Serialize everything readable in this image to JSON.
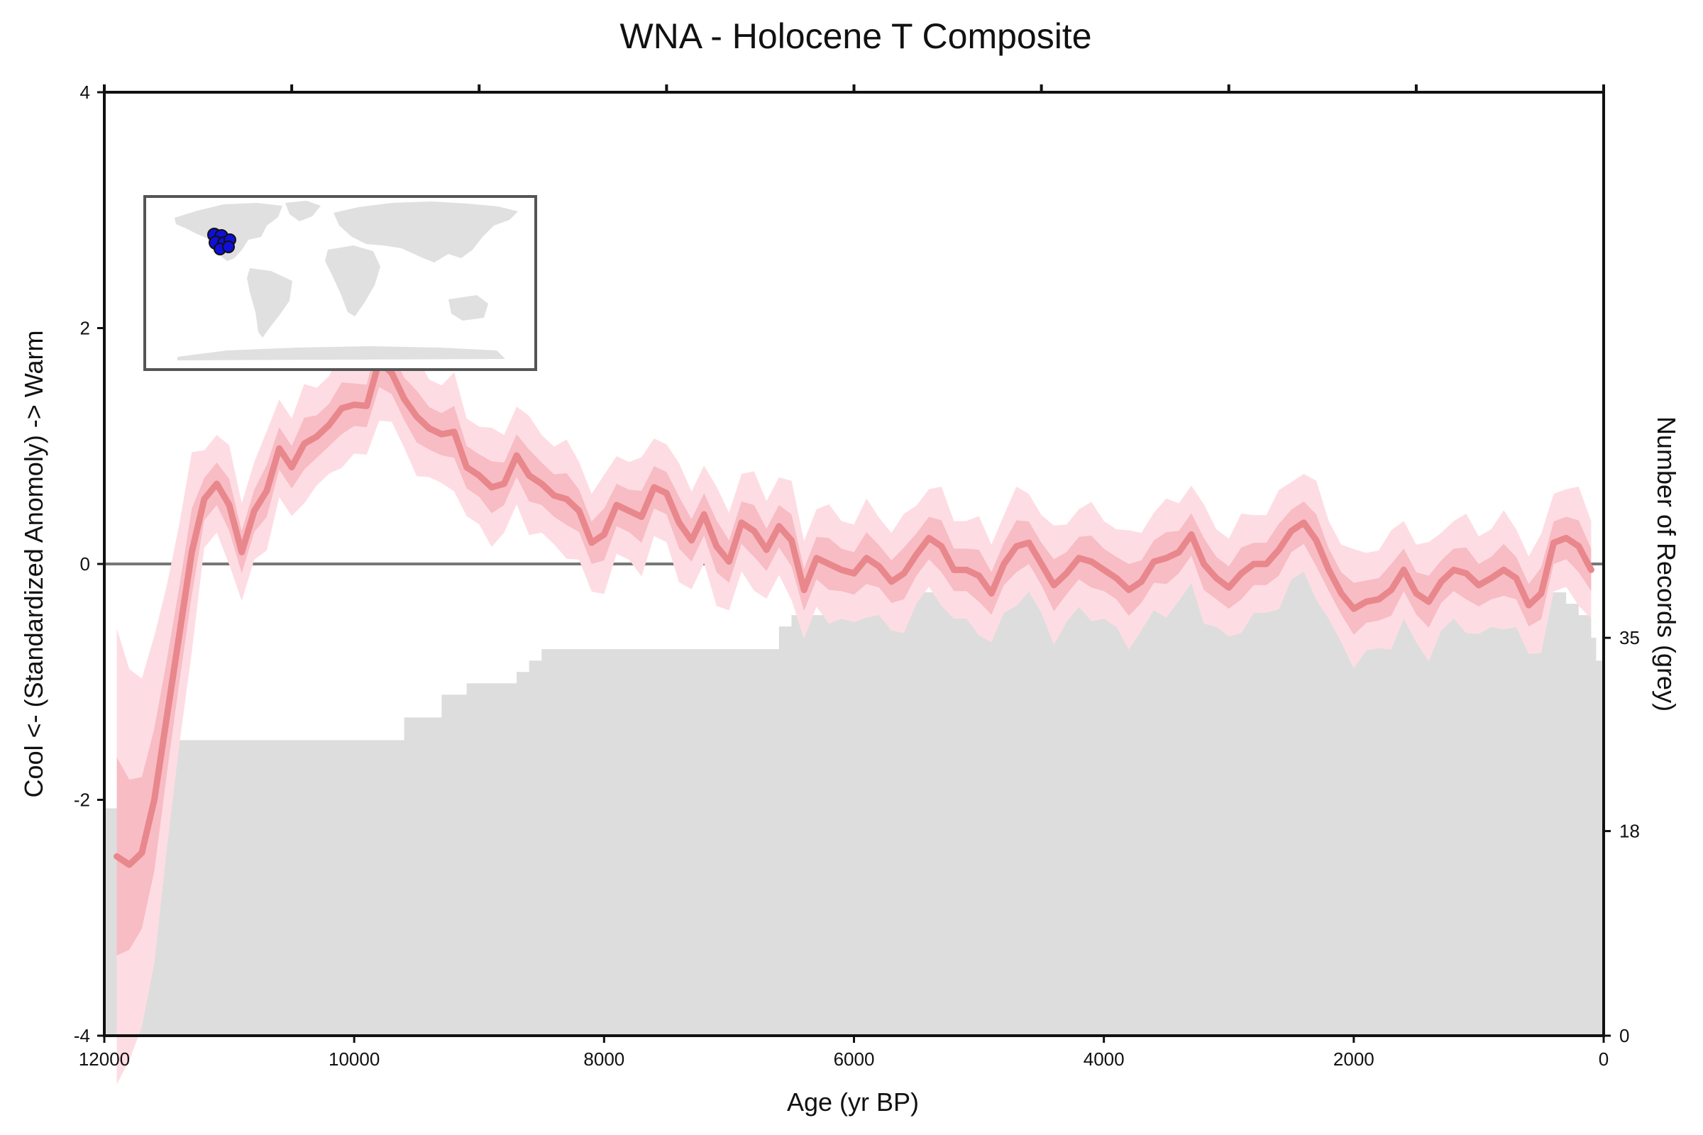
{
  "chart_data": {
    "type": "line",
    "title": "WNA - Holocene T Composite",
    "xlabel": "Age (yr BP)",
    "ylabel": "Cool <- (Standardized Anomoly) -> Warm",
    "y2label": "Number of Records (grey)",
    "x_reversed": true,
    "xlim": [
      12000,
      0
    ],
    "ylim": [
      -4,
      4
    ],
    "y2lim": [
      0,
      83
    ],
    "x_ticks": [
      "12000",
      "10000",
      "8000",
      "6000",
      "4000",
      "2000",
      "0"
    ],
    "y_ticks": [
      "4",
      "2",
      "0",
      "-2",
      "-4"
    ],
    "y2_ticks": [
      "35",
      "18",
      "0"
    ],
    "grid": false,
    "zero_line": true,
    "colors": {
      "composite": "#e8878c",
      "inner_band": "#f8bcc4",
      "outer_band": "#fddde3",
      "records": "#dddddd",
      "zero_line": "#777777",
      "site_marker": "#1010d8"
    },
    "series": [
      {
        "name": "Composite",
        "x": [
          11900,
          11800,
          11700,
          11600,
          11500,
          11400,
          11300,
          11200,
          11100,
          11000,
          10900,
          10800,
          10700,
          10600,
          10500,
          10400,
          10300,
          10200,
          10100,
          10000,
          9900,
          9800,
          9700,
          9600,
          9500,
          9400,
          9300,
          9200,
          9100,
          9000,
          8900,
          8800,
          8700,
          8600,
          8500,
          8400,
          8300,
          8200,
          8100,
          8000,
          7900,
          7800,
          7700,
          7600,
          7500,
          7400,
          7300,
          7200,
          7100,
          7000,
          6900,
          6800,
          6700,
          6600,
          6500,
          6400,
          6300,
          6200,
          6100,
          6000,
          5900,
          5800,
          5700,
          5600,
          5500,
          5400,
          5300,
          5200,
          5100,
          5000,
          4900,
          4800,
          4700,
          4600,
          4500,
          4400,
          4300,
          4200,
          4100,
          4000,
          3900,
          3800,
          3700,
          3600,
          3500,
          3400,
          3300,
          3200,
          3100,
          3000,
          2900,
          2800,
          2700,
          2600,
          2500,
          2400,
          2300,
          2200,
          2100,
          2000,
          1900,
          1800,
          1700,
          1600,
          1500,
          1400,
          1300,
          1200,
          1100,
          1000,
          900,
          800,
          700,
          600,
          500,
          400,
          300,
          200,
          100
        ],
        "values": [
          -2.48,
          -2.55,
          -2.45,
          -2.0,
          -1.3,
          -0.6,
          0.1,
          0.55,
          0.68,
          0.5,
          0.1,
          0.45,
          0.62,
          0.98,
          0.82,
          1.02,
          1.08,
          1.18,
          1.32,
          1.35,
          1.34,
          1.72,
          1.62,
          1.4,
          1.25,
          1.15,
          1.1,
          1.12,
          0.82,
          0.75,
          0.65,
          0.68,
          0.92,
          0.75,
          0.68,
          0.58,
          0.55,
          0.45,
          0.18,
          0.25,
          0.5,
          0.45,
          0.4,
          0.65,
          0.6,
          0.35,
          0.2,
          0.42,
          0.15,
          0.02,
          0.35,
          0.28,
          0.12,
          0.32,
          0.2,
          -0.22,
          0.05,
          0.0,
          -0.05,
          -0.08,
          0.05,
          -0.02,
          -0.15,
          -0.08,
          0.08,
          0.22,
          0.15,
          -0.05,
          -0.05,
          -0.1,
          -0.25,
          0.0,
          0.15,
          0.18,
          0.0,
          -0.18,
          -0.08,
          0.05,
          0.02,
          -0.05,
          -0.12,
          -0.22,
          -0.15,
          0.02,
          0.05,
          0.1,
          0.25,
          0.0,
          -0.12,
          -0.2,
          -0.08,
          0.0,
          0.0,
          0.12,
          0.28,
          0.35,
          0.2,
          -0.05,
          -0.25,
          -0.38,
          -0.32,
          -0.3,
          -0.22,
          -0.05,
          -0.25,
          -0.32,
          -0.15,
          -0.05,
          -0.08,
          -0.18,
          -0.12,
          -0.05,
          -0.12,
          -0.35,
          -0.25,
          0.18,
          0.22,
          0.15,
          -0.05
        ]
      }
    ],
    "records": {
      "x": [
        12000,
        11750,
        11700,
        11500,
        11000,
        10000,
        9600,
        9300,
        9100,
        8700,
        8600,
        8500,
        6700,
        6600,
        6500,
        6200,
        6000,
        5200,
        4500,
        3500,
        3000,
        1200,
        1000,
        700,
        500,
        400,
        300,
        200,
        100,
        60,
        0
      ],
      "values": [
        20,
        20,
        24,
        26,
        26,
        26,
        28,
        30,
        31,
        32,
        33,
        34,
        34,
        36,
        37,
        38,
        39,
        40,
        41,
        41,
        41,
        41,
        40,
        40,
        40,
        39,
        38,
        37,
        35,
        33,
        27
      ]
    },
    "inset_map": {
      "region": "Western North America",
      "marker": "site-dots"
    }
  }
}
